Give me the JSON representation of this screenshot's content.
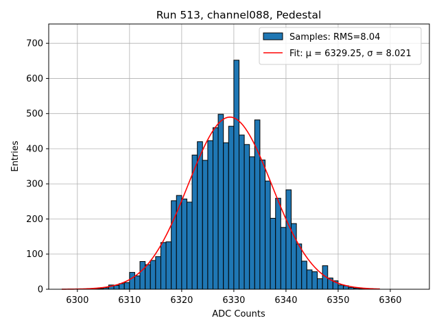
{
  "chart_data": {
    "type": "bar",
    "title": "Run 513, channel088, Pedestal",
    "xlabel": "ADC Counts",
    "ylabel": "Entries",
    "xlim": [
      6294.5,
      6367.5
    ],
    "ylim": [
      0,
      755
    ],
    "grid": true,
    "legend_position": "top-right",
    "x_ticks": [
      6300,
      6310,
      6320,
      6330,
      6340,
      6350,
      6360
    ],
    "y_ticks": [
      0,
      100,
      200,
      300,
      400,
      500,
      600,
      700
    ],
    "bin_width": 1,
    "series": [
      {
        "name": "Samples: RMS=8.04",
        "kind": "histogram",
        "color": "#1f77b4",
        "edge_color": "#000000",
        "bin_starts": [
          6303,
          6304,
          6305,
          6306,
          6307,
          6308,
          6309,
          6310,
          6311,
          6312,
          6313,
          6314,
          6315,
          6316,
          6317,
          6318,
          6319,
          6320,
          6321,
          6322,
          6323,
          6324,
          6325,
          6326,
          6327,
          6328,
          6329,
          6330,
          6331,
          6332,
          6333,
          6334,
          6335,
          6336,
          6337,
          6338,
          6339,
          6340,
          6341,
          6342,
          6343,
          6344,
          6345,
          6346,
          6347,
          6348,
          6349,
          6350,
          6351,
          6352,
          6353,
          6354,
          6355,
          6356
        ],
        "values": [
          1,
          2,
          4,
          12,
          11,
          16,
          19,
          48,
          38,
          79,
          70,
          82,
          93,
          133,
          135,
          252,
          267,
          257,
          248,
          382,
          420,
          367,
          423,
          460,
          498,
          417,
          464,
          652,
          439,
          412,
          377,
          482,
          368,
          308,
          202,
          259,
          176,
          283,
          187,
          129,
          80,
          55,
          50,
          30,
          67,
          32,
          24,
          12,
          10,
          5,
          3,
          2,
          1,
          1
        ]
      },
      {
        "name": "Fit: μ = 6329.25, σ = 8.021",
        "kind": "line",
        "color": "#ff0000",
        "mu": 6329.25,
        "sigma": 8.021,
        "amplitude": 490,
        "x_range": [
          6297,
          6358
        ]
      }
    ]
  }
}
